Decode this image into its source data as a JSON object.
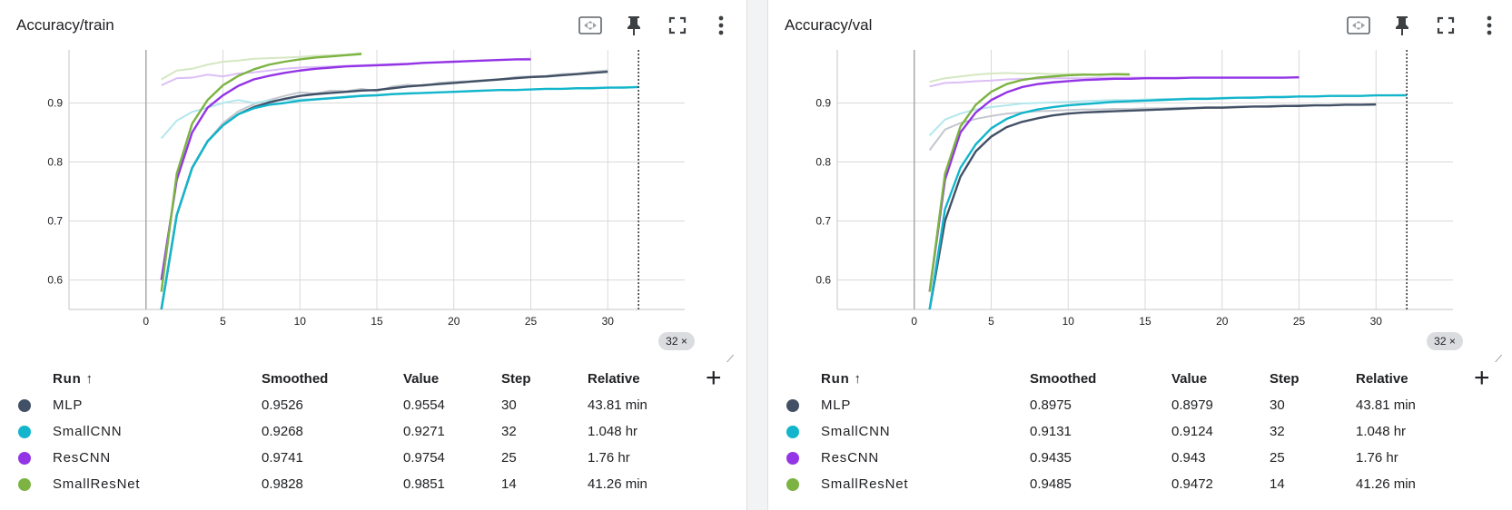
{
  "panels": [
    {
      "title": "Accuracy/train",
      "toolbar": {
        "fit": "fit-domain-icon",
        "pin": "pin-icon",
        "fullscreen": "fullscreen-icon",
        "more": "more-vert-icon"
      },
      "step_chip": "32 ×",
      "table": {
        "headers": [
          "Run ↑",
          "Smoothed",
          "Value",
          "Step",
          "Relative"
        ],
        "rows": [
          {
            "run": "MLP",
            "color": "#425066",
            "smoothed": "0.9526",
            "value": "0.9554",
            "step": "30",
            "relative": "43.81 min"
          },
          {
            "run": "SmallCNN",
            "color": "#12b5cb",
            "smoothed": "0.9268",
            "value": "0.9271",
            "step": "32",
            "relative": "1.048 hr"
          },
          {
            "run": "ResCNN",
            "color": "#9334e6",
            "smoothed": "0.9741",
            "value": "0.9754",
            "step": "25",
            "relative": "1.76 hr"
          },
          {
            "run": "SmallResNet",
            "color": "#7cb342",
            "smoothed": "0.9828",
            "value": "0.9851",
            "step": "14",
            "relative": "41.26 min"
          }
        ]
      },
      "chart_data": {
        "type": "line",
        "title": "Accuracy/train",
        "xlim": [
          -5,
          35
        ],
        "ylim": [
          0.55,
          0.99
        ],
        "x_ticks": [
          "0",
          "5",
          "10",
          "15",
          "20",
          "25",
          "30"
        ],
        "y_ticks": [
          "0.6",
          "0.7",
          "0.8",
          "0.9"
        ],
        "cursor_step": 32,
        "grid": true,
        "series": [
          {
            "name": "MLP",
            "color": "#425066",
            "x": [
              1,
              2,
              3,
              4,
              5,
              6,
              7,
              8,
              9,
              10,
              11,
              12,
              13,
              14,
              15,
              16,
              17,
              18,
              19,
              20,
              21,
              22,
              23,
              24,
              25,
              26,
              27,
              28,
              29,
              30
            ],
            "smoothed": [
              0.55,
              0.71,
              0.79,
              0.835,
              0.862,
              0.881,
              0.893,
              0.901,
              0.907,
              0.912,
              0.915,
              0.917,
              0.919,
              0.921,
              0.922,
              0.925,
              0.928,
              0.93,
              0.932,
              0.934,
              0.936,
              0.938,
              0.94,
              0.942,
              0.944,
              0.945,
              0.947,
              0.949,
              0.951,
              0.953
            ],
            "raw": [
              0.55,
              0.71,
              0.79,
              0.835,
              0.866,
              0.886,
              0.898,
              0.905,
              0.912,
              0.918,
              0.916,
              0.921,
              0.92,
              0.924,
              0.92,
              0.928,
              0.931,
              0.929,
              0.934,
              0.936,
              0.937,
              0.939,
              0.94,
              0.944,
              0.945,
              0.946,
              0.949,
              0.95,
              0.953,
              0.9554
            ]
          },
          {
            "name": "SmallCNN",
            "color": "#12b5cb",
            "x": [
              1,
              2,
              3,
              4,
              5,
              6,
              7,
              8,
              9,
              10,
              11,
              12,
              13,
              14,
              15,
              16,
              17,
              18,
              19,
              20,
              21,
              22,
              23,
              24,
              25,
              26,
              27,
              28,
              29,
              30,
              31,
              32
            ],
            "smoothed": [
              0.55,
              0.71,
              0.79,
              0.835,
              0.862,
              0.881,
              0.891,
              0.897,
              0.9,
              0.904,
              0.906,
              0.908,
              0.91,
              0.912,
              0.913,
              0.915,
              0.916,
              0.917,
              0.918,
              0.919,
              0.92,
              0.921,
              0.922,
              0.922,
              0.923,
              0.924,
              0.924,
              0.925,
              0.925,
              0.926,
              0.926,
              0.927
            ],
            "raw": [
              0.84,
              0.87,
              0.885,
              0.892,
              0.9,
              0.905,
              0.9,
              0.904,
              0.905,
              0.906,
              0.907,
              0.909,
              0.911,
              0.913,
              0.914,
              0.915,
              0.917,
              0.917,
              0.918,
              0.919,
              0.92,
              0.921,
              0.922,
              0.922,
              0.923,
              0.924,
              0.924,
              0.925,
              0.926,
              0.926,
              0.927,
              0.9271
            ]
          },
          {
            "name": "ResCNN",
            "color": "#9334e6",
            "x": [
              1,
              2,
              3,
              4,
              5,
              6,
              7,
              8,
              9,
              10,
              11,
              12,
              13,
              14,
              15,
              16,
              17,
              18,
              19,
              20,
              21,
              22,
              23,
              24,
              25
            ],
            "smoothed": [
              0.6,
              0.77,
              0.85,
              0.892,
              0.913,
              0.929,
              0.94,
              0.946,
              0.951,
              0.955,
              0.958,
              0.96,
              0.962,
              0.963,
              0.964,
              0.965,
              0.966,
              0.968,
              0.969,
              0.97,
              0.971,
              0.972,
              0.973,
              0.974,
              0.974
            ],
            "raw": [
              0.93,
              0.942,
              0.943,
              0.948,
              0.945,
              0.95,
              0.952,
              0.955,
              0.958,
              0.96,
              0.961,
              0.962,
              0.963,
              0.964,
              0.965,
              0.966,
              0.967,
              0.968,
              0.969,
              0.97,
              0.971,
              0.972,
              0.973,
              0.974,
              0.9754
            ]
          },
          {
            "name": "SmallResNet",
            "color": "#7cb342",
            "x": [
              1,
              2,
              3,
              4,
              5,
              6,
              7,
              8,
              9,
              10,
              11,
              12,
              13,
              14
            ],
            "smoothed": [
              0.58,
              0.78,
              0.865,
              0.905,
              0.93,
              0.946,
              0.957,
              0.965,
              0.97,
              0.974,
              0.977,
              0.979,
              0.981,
              0.983
            ],
            "raw": [
              0.94,
              0.955,
              0.958,
              0.965,
              0.97,
              0.972,
              0.975,
              0.976,
              0.977,
              0.978,
              0.98,
              0.981,
              0.982,
              0.9851
            ]
          }
        ]
      }
    },
    {
      "title": "Accuracy/val",
      "toolbar": {
        "fit": "fit-domain-icon",
        "pin": "pin-icon",
        "fullscreen": "fullscreen-icon",
        "more": "more-vert-icon"
      },
      "step_chip": "32 ×",
      "table": {
        "headers": [
          "Run ↑",
          "Smoothed",
          "Value",
          "Step",
          "Relative"
        ],
        "rows": [
          {
            "run": "MLP",
            "color": "#425066",
            "smoothed": "0.8975",
            "value": "0.8979",
            "step": "30",
            "relative": "43.81 min"
          },
          {
            "run": "SmallCNN",
            "color": "#12b5cb",
            "smoothed": "0.9131",
            "value": "0.9124",
            "step": "32",
            "relative": "1.048 hr"
          },
          {
            "run": "ResCNN",
            "color": "#9334e6",
            "smoothed": "0.9435",
            "value": "0.943",
            "step": "25",
            "relative": "1.76 hr"
          },
          {
            "run": "SmallResNet",
            "color": "#7cb342",
            "smoothed": "0.9485",
            "value": "0.9472",
            "step": "14",
            "relative": "41.26 min"
          }
        ]
      },
      "chart_data": {
        "type": "line",
        "title": "Accuracy/val",
        "xlim": [
          -5,
          35
        ],
        "ylim": [
          0.55,
          0.99
        ],
        "x_ticks": [
          "0",
          "5",
          "10",
          "15",
          "20",
          "25",
          "30"
        ],
        "y_ticks": [
          "0.6",
          "0.7",
          "0.8",
          "0.9"
        ],
        "cursor_step": 32,
        "grid": true,
        "series": [
          {
            "name": "MLP",
            "color": "#425066",
            "x": [
              1,
              2,
              3,
              4,
              5,
              6,
              7,
              8,
              9,
              10,
              11,
              12,
              13,
              14,
              15,
              16,
              17,
              18,
              19,
              20,
              21,
              22,
              23,
              24,
              25,
              26,
              27,
              28,
              29,
              30
            ],
            "smoothed": [
              0.55,
              0.7,
              0.775,
              0.818,
              0.843,
              0.859,
              0.868,
              0.874,
              0.879,
              0.882,
              0.884,
              0.885,
              0.886,
              0.887,
              0.888,
              0.889,
              0.89,
              0.891,
              0.892,
              0.892,
              0.893,
              0.894,
              0.894,
              0.895,
              0.895,
              0.896,
              0.896,
              0.897,
              0.897,
              0.8975
            ],
            "raw": [
              0.82,
              0.855,
              0.866,
              0.873,
              0.878,
              0.882,
              0.884,
              0.886,
              0.887,
              0.888,
              0.889,
              0.889,
              0.89,
              0.89,
              0.891,
              0.891,
              0.892,
              0.892,
              0.893,
              0.893,
              0.894,
              0.894,
              0.895,
              0.895,
              0.896,
              0.896,
              0.896,
              0.897,
              0.897,
              0.8979
            ]
          },
          {
            "name": "SmallCNN",
            "color": "#12b5cb",
            "x": [
              1,
              2,
              3,
              4,
              5,
              6,
              7,
              8,
              9,
              10,
              11,
              12,
              13,
              14,
              15,
              16,
              17,
              18,
              19,
              20,
              21,
              22,
              23,
              24,
              25,
              26,
              27,
              28,
              29,
              30,
              31,
              32
            ],
            "smoothed": [
              0.55,
              0.72,
              0.79,
              0.83,
              0.857,
              0.873,
              0.883,
              0.889,
              0.893,
              0.896,
              0.898,
              0.9,
              0.902,
              0.903,
              0.904,
              0.905,
              0.906,
              0.907,
              0.907,
              0.908,
              0.909,
              0.909,
              0.91,
              0.91,
              0.911,
              0.911,
              0.912,
              0.912,
              0.912,
              0.913,
              0.913,
              0.9131
            ],
            "raw": [
              0.845,
              0.872,
              0.882,
              0.889,
              0.893,
              0.896,
              0.899,
              0.9,
              0.901,
              0.902,
              0.903,
              0.904,
              0.905,
              0.905,
              0.906,
              0.907,
              0.907,
              0.908,
              0.908,
              0.909,
              0.909,
              0.91,
              0.91,
              0.911,
              0.911,
              0.911,
              0.912,
              0.912,
              0.912,
              0.913,
              0.913,
              0.9124
            ]
          },
          {
            "name": "ResCNN",
            "color": "#9334e6",
            "x": [
              1,
              2,
              3,
              4,
              5,
              6,
              7,
              8,
              9,
              10,
              11,
              12,
              13,
              14,
              15,
              16,
              17,
              18,
              19,
              20,
              21,
              22,
              23,
              24,
              25
            ],
            "smoothed": [
              0.58,
              0.77,
              0.85,
              0.884,
              0.905,
              0.918,
              0.927,
              0.932,
              0.935,
              0.937,
              0.939,
              0.94,
              0.941,
              0.941,
              0.942,
              0.942,
              0.942,
              0.943,
              0.943,
              0.943,
              0.943,
              0.943,
              0.943,
              0.943,
              0.9435
            ],
            "raw": [
              0.928,
              0.934,
              0.935,
              0.937,
              0.938,
              0.94,
              0.941,
              0.941,
              0.942,
              0.942,
              0.942,
              0.943,
              0.943,
              0.943,
              0.943,
              0.943,
              0.943,
              0.943,
              0.943,
              0.943,
              0.943,
              0.943,
              0.943,
              0.943,
              0.943
            ]
          },
          {
            "name": "SmallResNet",
            "color": "#7cb342",
            "x": [
              1,
              2,
              3,
              4,
              5,
              6,
              7,
              8,
              9,
              10,
              11,
              12,
              13,
              14
            ],
            "smoothed": [
              0.58,
              0.78,
              0.86,
              0.897,
              0.919,
              0.932,
              0.939,
              0.943,
              0.945,
              0.947,
              0.948,
              0.948,
              0.949,
              0.9485
            ],
            "raw": [
              0.936,
              0.942,
              0.945,
              0.948,
              0.95,
              0.951,
              0.95,
              0.95,
              0.949,
              0.949,
              0.949,
              0.948,
              0.948,
              0.9472
            ]
          }
        ]
      }
    }
  ]
}
